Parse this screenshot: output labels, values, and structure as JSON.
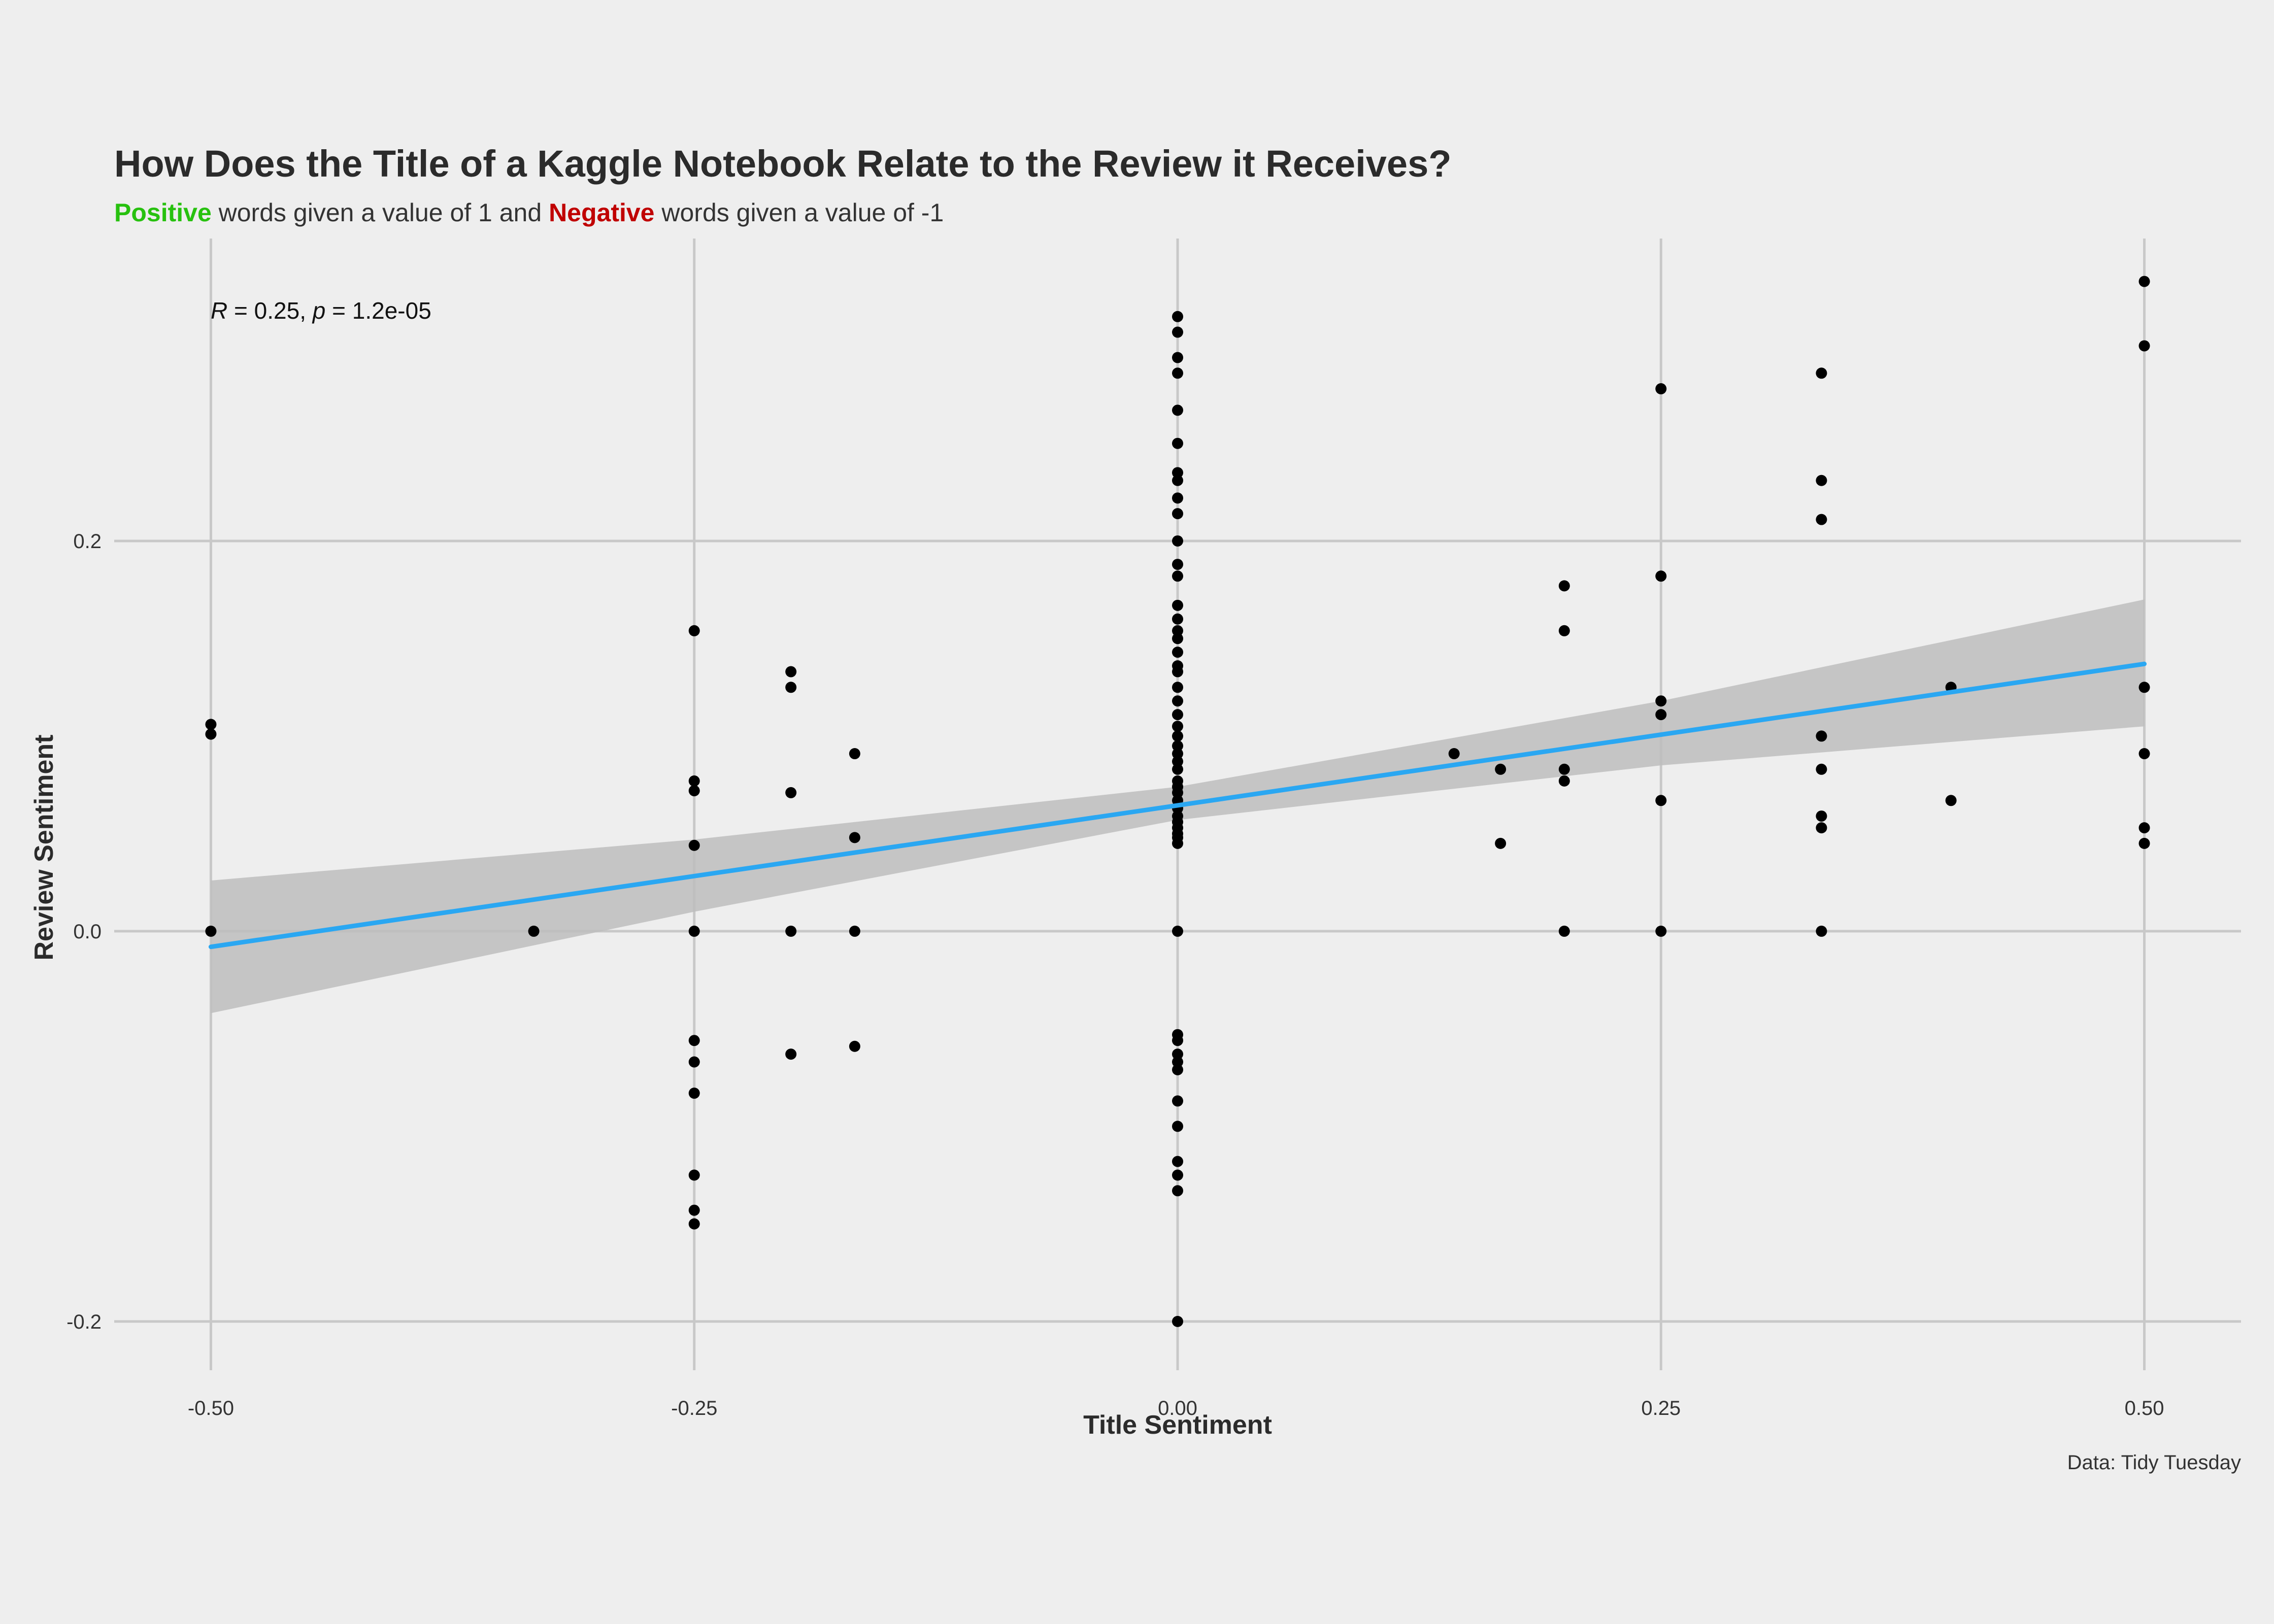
{
  "chart_data": {
    "type": "scatter",
    "title": "How Does the Title of a Kaggle Notebook Relate to the Review it Receives?",
    "subtitle": {
      "positive_word": "Positive",
      "middle": " words given a value of 1 and ",
      "negative_word": "Negative",
      "end": " words given a value of -1"
    },
    "xlabel": "Title Sentiment",
    "ylabel": "Review Sentiment",
    "caption": "Data: Tidy Tuesday",
    "annotation": {
      "r_symbol": "R",
      "r_value": " = 0.25, ",
      "p_symbol": "p",
      "p_value": " = 1.2e-05"
    },
    "xlim": [
      -0.55,
      0.55
    ],
    "ylim": [
      -0.225,
      0.355
    ],
    "x_ticks": [
      -0.5,
      -0.25,
      0.0,
      0.25,
      0.5
    ],
    "x_tick_labels": [
      "-0.50",
      "-0.25",
      "0.00",
      "0.25",
      "0.50"
    ],
    "y_ticks": [
      -0.2,
      0.0,
      0.2
    ],
    "y_tick_labels": [
      "-0.2",
      "0.0",
      "0.2"
    ],
    "grid": true,
    "colors": {
      "points": "#000000",
      "fit_line": "#2aa7f2",
      "confidence_band": "#bdbdbd",
      "grid": "#c8c8c8",
      "positive": "#27c10f",
      "negative": "#c00000",
      "background": "#eeeeee"
    },
    "fit": {
      "x": [
        -0.5,
        0.5
      ],
      "y": [
        -0.008,
        0.137
      ]
    },
    "confidence_band": {
      "x": [
        -0.5,
        -0.25,
        0.0,
        0.25,
        0.5
      ],
      "upper": [
        0.026,
        0.047,
        0.074,
        0.118,
        0.17
      ],
      "lower": [
        -0.042,
        0.01,
        0.057,
        0.085,
        0.105
      ]
    },
    "points": [
      [
        -0.5,
        0.106
      ],
      [
        -0.5,
        0.101
      ],
      [
        -0.5,
        0.0
      ],
      [
        -0.333,
        0.0
      ],
      [
        -0.25,
        0.154
      ],
      [
        -0.25,
        0.077
      ],
      [
        -0.25,
        0.072
      ],
      [
        -0.25,
        0.044
      ],
      [
        -0.25,
        0.0
      ],
      [
        -0.25,
        -0.056
      ],
      [
        -0.25,
        -0.067
      ],
      [
        -0.25,
        -0.083
      ],
      [
        -0.25,
        -0.125
      ],
      [
        -0.25,
        -0.143
      ],
      [
        -0.25,
        -0.15
      ],
      [
        -0.2,
        0.133
      ],
      [
        -0.2,
        0.125
      ],
      [
        -0.2,
        0.071
      ],
      [
        -0.2,
        0.0
      ],
      [
        -0.2,
        -0.063
      ],
      [
        -0.167,
        0.091
      ],
      [
        -0.167,
        0.048
      ],
      [
        -0.167,
        0.0
      ],
      [
        -0.167,
        -0.059
      ],
      [
        0.0,
        0.315
      ],
      [
        0.0,
        0.307
      ],
      [
        0.0,
        0.294
      ],
      [
        0.0,
        0.286
      ],
      [
        0.0,
        0.267
      ],
      [
        0.0,
        0.25
      ],
      [
        0.0,
        0.235
      ],
      [
        0.0,
        0.231
      ],
      [
        0.0,
        0.222
      ],
      [
        0.0,
        0.214
      ],
      [
        0.0,
        0.2
      ],
      [
        0.0,
        0.188
      ],
      [
        0.0,
        0.182
      ],
      [
        0.0,
        0.167
      ],
      [
        0.0,
        0.16
      ],
      [
        0.0,
        0.154
      ],
      [
        0.0,
        0.15
      ],
      [
        0.0,
        0.143
      ],
      [
        0.0,
        0.136
      ],
      [
        0.0,
        0.133
      ],
      [
        0.0,
        0.125
      ],
      [
        0.0,
        0.118
      ],
      [
        0.0,
        0.111
      ],
      [
        0.0,
        0.105
      ],
      [
        0.0,
        0.1
      ],
      [
        0.0,
        0.095
      ],
      [
        0.0,
        0.091
      ],
      [
        0.0,
        0.087
      ],
      [
        0.0,
        0.083
      ],
      [
        0.0,
        0.077
      ],
      [
        0.0,
        0.074
      ],
      [
        0.0,
        0.071
      ],
      [
        0.0,
        0.067
      ],
      [
        0.0,
        0.063
      ],
      [
        0.0,
        0.059
      ],
      [
        0.0,
        0.056
      ],
      [
        0.0,
        0.053
      ],
      [
        0.0,
        0.05
      ],
      [
        0.0,
        0.048
      ],
      [
        0.0,
        0.045
      ],
      [
        0.0,
        0.0
      ],
      [
        0.0,
        -0.053
      ],
      [
        0.0,
        -0.056
      ],
      [
        0.0,
        -0.063
      ],
      [
        0.0,
        -0.067
      ],
      [
        0.0,
        -0.071
      ],
      [
        0.0,
        -0.087
      ],
      [
        0.0,
        -0.1
      ],
      [
        0.0,
        -0.118
      ],
      [
        0.0,
        -0.125
      ],
      [
        0.0,
        -0.133
      ],
      [
        0.0,
        -0.2
      ],
      [
        0.143,
        0.091
      ],
      [
        0.167,
        0.083
      ],
      [
        0.167,
        0.045
      ],
      [
        0.2,
        0.177
      ],
      [
        0.2,
        0.154
      ],
      [
        0.2,
        0.083
      ],
      [
        0.2,
        0.077
      ],
      [
        0.2,
        0.0
      ],
      [
        0.25,
        0.278
      ],
      [
        0.25,
        0.182
      ],
      [
        0.25,
        0.118
      ],
      [
        0.25,
        0.111
      ],
      [
        0.25,
        0.067
      ],
      [
        0.25,
        0.0
      ],
      [
        0.333,
        0.286
      ],
      [
        0.333,
        0.231
      ],
      [
        0.333,
        0.211
      ],
      [
        0.333,
        0.1
      ],
      [
        0.333,
        0.083
      ],
      [
        0.333,
        0.059
      ],
      [
        0.333,
        0.053
      ],
      [
        0.333,
        0.0
      ],
      [
        0.4,
        0.125
      ],
      [
        0.4,
        0.067
      ],
      [
        0.5,
        0.333
      ],
      [
        0.5,
        0.3
      ],
      [
        0.5,
        0.125
      ],
      [
        0.5,
        0.091
      ],
      [
        0.5,
        0.053
      ],
      [
        0.5,
        0.045
      ]
    ]
  }
}
